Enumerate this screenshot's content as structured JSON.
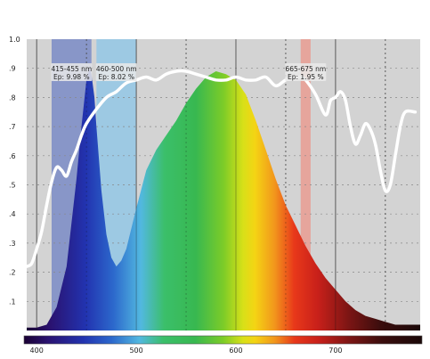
{
  "chart_data": {
    "type": "area",
    "title": "",
    "xlabel": "",
    "ylabel": "",
    "xlim": [
      390,
      785
    ],
    "ylim": [
      0,
      1.0
    ],
    "y_ticks": [
      ".1",
      ".2",
      ".3",
      ".4",
      ".5",
      ".6",
      ".7",
      ".8",
      ".9",
      "1.0"
    ],
    "x_ticks": [
      "400",
      "500",
      "600",
      "700"
    ],
    "grid": "vertical solid every 100 nm, dotted every 50 nm; horizontal dotted every 0.1",
    "colors": {
      "plot_bg": "#d3d3d3",
      "frame_bg": "#ffffff",
      "curve": "#ffffff"
    },
    "bands": [
      {
        "range": [
          415,
          455
        ],
        "label": "415-455 nm",
        "value_label": "Ep: 9.98 %",
        "color": "#8896c8"
      },
      {
        "range": [
          460,
          500
        ],
        "label": "460-500 nm",
        "value_label": "Ep: 8.02 %",
        "color": "#9dc9e3"
      },
      {
        "range": [
          665,
          675
        ],
        "label": "665-675 nm",
        "value_label": "Ep: 1.95 %",
        "color": "#e6a59c"
      }
    ],
    "series": [
      {
        "kind": "spectrum_fill",
        "x": [
          390,
          400,
          410,
          420,
          430,
          440,
          445,
          450,
          453,
          455,
          458,
          460,
          465,
          470,
          475,
          480,
          485,
          490,
          500,
          510,
          520,
          530,
          540,
          550,
          560,
          570,
          580,
          590,
          600,
          610,
          620,
          630,
          640,
          650,
          660,
          670,
          680,
          690,
          700,
          710,
          720,
          730,
          740,
          750,
          760,
          770,
          785
        ],
        "values": [
          0.01,
          0.01,
          0.02,
          0.08,
          0.22,
          0.52,
          0.7,
          0.86,
          0.9,
          0.88,
          0.8,
          0.7,
          0.48,
          0.33,
          0.25,
          0.22,
          0.24,
          0.28,
          0.42,
          0.55,
          0.62,
          0.67,
          0.72,
          0.78,
          0.83,
          0.87,
          0.89,
          0.88,
          0.86,
          0.81,
          0.72,
          0.62,
          0.52,
          0.43,
          0.36,
          0.29,
          0.23,
          0.18,
          0.14,
          0.1,
          0.07,
          0.05,
          0.04,
          0.03,
          0.02,
          0.02,
          0.02
        ]
      },
      {
        "kind": "white_curve",
        "x": [
          390,
          395,
          400,
          405,
          410,
          415,
          420,
          425,
          430,
          435,
          440,
          445,
          450,
          460,
          470,
          480,
          490,
          500,
          510,
          520,
          530,
          540,
          550,
          560,
          570,
          580,
          590,
          600,
          610,
          620,
          630,
          640,
          650,
          660,
          665,
          670,
          680,
          690,
          695,
          700,
          705,
          710,
          715,
          720,
          725,
          730,
          735,
          740,
          745,
          750,
          755,
          760,
          765,
          770,
          780
        ],
        "values": [
          0.22,
          0.23,
          0.28,
          0.34,
          0.43,
          0.51,
          0.56,
          0.55,
          0.53,
          0.58,
          0.62,
          0.67,
          0.71,
          0.76,
          0.8,
          0.82,
          0.85,
          0.86,
          0.87,
          0.86,
          0.88,
          0.89,
          0.89,
          0.88,
          0.87,
          0.86,
          0.86,
          0.87,
          0.86,
          0.86,
          0.87,
          0.84,
          0.86,
          0.87,
          0.87,
          0.86,
          0.81,
          0.74,
          0.79,
          0.8,
          0.82,
          0.79,
          0.7,
          0.64,
          0.67,
          0.71,
          0.69,
          0.64,
          0.55,
          0.48,
          0.5,
          0.6,
          0.7,
          0.75,
          0.75
        ]
      }
    ]
  }
}
